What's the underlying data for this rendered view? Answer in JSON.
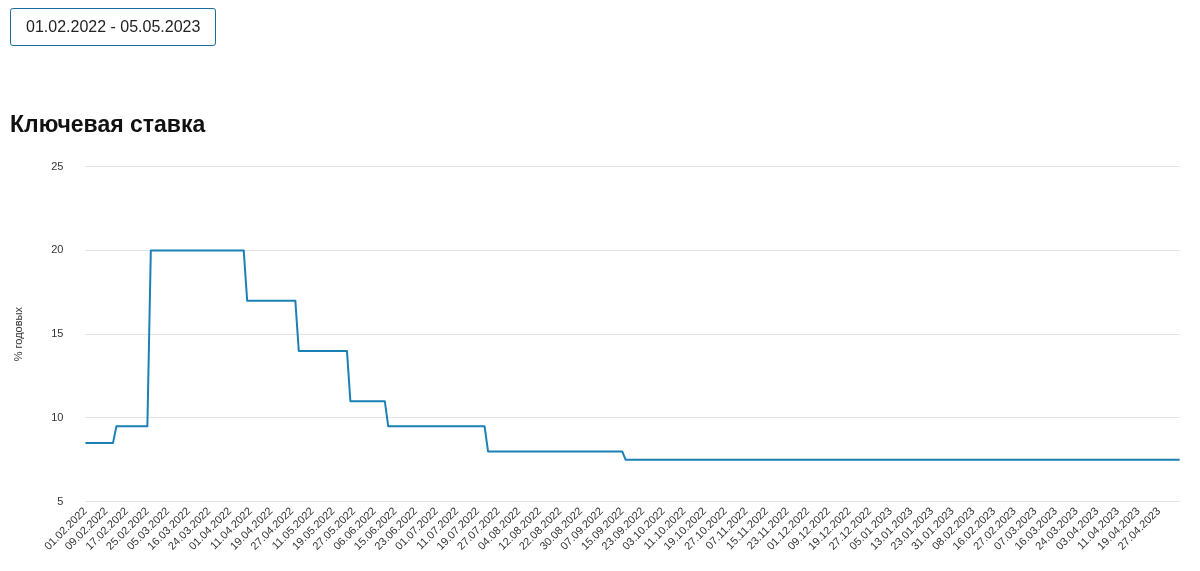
{
  "chart_data": {
    "type": "line",
    "title": "Ключевая ставка",
    "subtitle": "01.02.2022 - 05.05.2023",
    "ylabel": "% годовых",
    "categories": [
      "01.02.2022",
      null,
      null,
      null,
      null,
      null,
      "09.02.2022",
      null,
      null,
      null,
      null,
      null,
      "17.02.2022",
      null,
      null,
      null,
      null,
      null,
      "25.02.2022",
      null,
      null,
      null,
      null,
      null,
      "05.03.2022",
      null,
      null,
      null,
      null,
      null,
      "16.03.2022",
      null,
      null,
      null,
      null,
      null,
      "24.03.2022",
      null,
      null,
      null,
      null,
      null,
      "01.04.2022",
      null,
      null,
      null,
      null,
      null,
      "11.04.2022",
      null,
      null,
      null,
      null,
      null,
      "19.04.2022",
      null,
      null,
      null,
      null,
      null,
      "27.04.2022",
      null,
      null,
      null,
      null,
      null,
      "11.05.2022",
      null,
      null,
      null,
      null,
      null,
      "19.05.2022",
      null,
      null,
      null,
      null,
      null,
      "27.05.2022",
      null,
      null,
      null,
      null,
      null,
      "06.06.2022",
      null,
      null,
      null,
      null,
      null,
      "15.06.2022",
      null,
      null,
      null,
      null,
      null,
      "23.06.2022",
      null,
      null,
      null,
      null,
      null,
      "01.07.2022",
      null,
      null,
      null,
      null,
      null,
      "11.07.2022",
      null,
      null,
      null,
      null,
      null,
      "19.07.2022",
      null,
      null,
      null,
      null,
      null,
      "27.07.2022",
      null,
      null,
      null,
      null,
      null,
      "04.08.2022",
      null,
      null,
      null,
      null,
      null,
      "12.08.2022",
      null,
      null,
      null,
      null,
      null,
      "22.08.2022",
      null,
      null,
      null,
      null,
      null,
      "30.08.2022",
      null,
      null,
      null,
      null,
      null,
      "07.09.2022",
      null,
      null,
      null,
      null,
      null,
      "15.09.2022",
      null,
      null,
      null,
      null,
      null,
      "23.09.2022",
      null,
      null,
      null,
      null,
      null,
      "03.10.2022",
      null,
      null,
      null,
      null,
      null,
      "11.10.2022",
      null,
      null,
      null,
      null,
      null,
      "19.10.2022",
      null,
      null,
      null,
      null,
      null,
      "27.10.2022",
      null,
      null,
      null,
      null,
      null,
      "07.11.2022",
      null,
      null,
      null,
      null,
      null,
      "15.11.2022",
      null,
      null,
      null,
      null,
      null,
      "23.11.2022",
      null,
      null,
      null,
      null,
      null,
      "01.12.2022",
      null,
      null,
      null,
      null,
      null,
      "09.12.2022",
      null,
      null,
      null,
      null,
      null,
      "19.12.2022",
      null,
      null,
      null,
      null,
      null,
      "27.12.2022",
      null,
      null,
      null,
      null,
      null,
      "05.01.2023",
      null,
      null,
      null,
      null,
      null,
      "13.01.2023",
      null,
      null,
      null,
      null,
      null,
      "23.01.2023",
      null,
      null,
      null,
      null,
      null,
      "31.01.2023",
      null,
      null,
      null,
      null,
      null,
      "08.02.2023",
      null,
      null,
      null,
      null,
      null,
      "16.02.2023",
      null,
      null,
      null,
      null,
      null,
      "27.02.2023",
      null,
      null,
      null,
      null,
      null,
      "07.03.2023",
      null,
      null,
      null,
      null,
      null,
      "16.03.2023",
      null,
      null,
      null,
      null,
      null,
      "24.03.2023",
      null,
      null,
      null,
      null,
      null,
      "03.04.2023",
      null,
      null,
      null,
      null,
      null,
      "11.04.2023",
      null,
      null,
      null,
      null,
      null,
      "19.04.2023",
      null,
      null,
      null,
      null,
      null,
      "27.04.2023",
      null,
      null,
      null,
      null,
      null,
      null
    ],
    "series": [
      {
        "color": "#1a80b6",
        "values": [
          8.5,
          8.5,
          8.5,
          8.5,
          8.5,
          8.5,
          8.5,
          8.5,
          8.5,
          9.5,
          9.5,
          9.5,
          9.5,
          9.5,
          9.5,
          9.5,
          9.5,
          9.5,
          9.5,
          20,
          20,
          20,
          20,
          20,
          20,
          20,
          20,
          20,
          20,
          20,
          20,
          20,
          20,
          20,
          20,
          20,
          20,
          20,
          20,
          20,
          20,
          20,
          20,
          20,
          20,
          20,
          20,
          17,
          17,
          17,
          17,
          17,
          17,
          17,
          17,
          17,
          17,
          17,
          17,
          17,
          17,
          17,
          14,
          14,
          14,
          14,
          14,
          14,
          14,
          14,
          14,
          14,
          14,
          14,
          14,
          14,
          14,
          11,
          11,
          11,
          11,
          11,
          11,
          11,
          11,
          11,
          11,
          11,
          9.5,
          9.5,
          9.5,
          9.5,
          9.5,
          9.5,
          9.5,
          9.5,
          9.5,
          9.5,
          9.5,
          9.5,
          9.5,
          9.5,
          9.5,
          9.5,
          9.5,
          9.5,
          9.5,
          9.5,
          9.5,
          9.5,
          9.5,
          9.5,
          9.5,
          9.5,
          9.5,
          9.5,
          9.5,
          8,
          8,
          8,
          8,
          8,
          8,
          8,
          8,
          8,
          8,
          8,
          8,
          8,
          8,
          8,
          8,
          8,
          8,
          8,
          8,
          8,
          8,
          8,
          8,
          8,
          8,
          8,
          8,
          8,
          8,
          8,
          8,
          8,
          8,
          8,
          8,
          8,
          8,
          8,
          8,
          7.5,
          7.5,
          7.5,
          7.5,
          7.5,
          7.5,
          7.5,
          7.5,
          7.5,
          7.5,
          7.5,
          7.5,
          7.5,
          7.5,
          7.5,
          7.5,
          7.5,
          7.5,
          7.5,
          7.5,
          7.5,
          7.5,
          7.5,
          7.5,
          7.5,
          7.5,
          7.5,
          7.5,
          7.5,
          7.5,
          7.5,
          7.5,
          7.5,
          7.5,
          7.5,
          7.5,
          7.5,
          7.5,
          7.5,
          7.5,
          7.5,
          7.5,
          7.5,
          7.5,
          7.5,
          7.5,
          7.5,
          7.5,
          7.5,
          7.5,
          7.5,
          7.5,
          7.5,
          7.5,
          7.5,
          7.5,
          7.5,
          7.5,
          7.5,
          7.5,
          7.5,
          7.5,
          7.5,
          7.5,
          7.5,
          7.5,
          7.5,
          7.5,
          7.5,
          7.5,
          7.5,
          7.5,
          7.5,
          7.5,
          7.5,
          7.5,
          7.5,
          7.5,
          7.5,
          7.5,
          7.5,
          7.5,
          7.5,
          7.5,
          7.5,
          7.5,
          7.5,
          7.5,
          7.5,
          7.5,
          7.5,
          7.5,
          7.5,
          7.5,
          7.5,
          7.5,
          7.5,
          7.5,
          7.5,
          7.5,
          7.5,
          7.5,
          7.5,
          7.5,
          7.5,
          7.5,
          7.5,
          7.5,
          7.5,
          7.5,
          7.5,
          7.5,
          7.5,
          7.5,
          7.5,
          7.5,
          7.5,
          7.5,
          7.5,
          7.5,
          7.5,
          7.5,
          7.5,
          7.5,
          7.5,
          7.5,
          7.5,
          7.5,
          7.5,
          7.5,
          7.5,
          7.5,
          7.5,
          7.5,
          7.5,
          7.5,
          7.5,
          7.5,
          7.5,
          7.5,
          7.5,
          7.5,
          7.5,
          7.5,
          7.5,
          7.5,
          7.5,
          7.5,
          7.5,
          7.5,
          7.5,
          7.5,
          7.5,
          7.5,
          7.5,
          7.5,
          7.5,
          7.5,
          7.5,
          7.5,
          7.5,
          7.5
        ]
      }
    ],
    "ylim": [
      5,
      25
    ],
    "yticks": [
      5,
      10,
      15,
      20,
      25
    ],
    "grid": "y",
    "legend": false,
    "marker": "none",
    "line_style": "solid"
  }
}
